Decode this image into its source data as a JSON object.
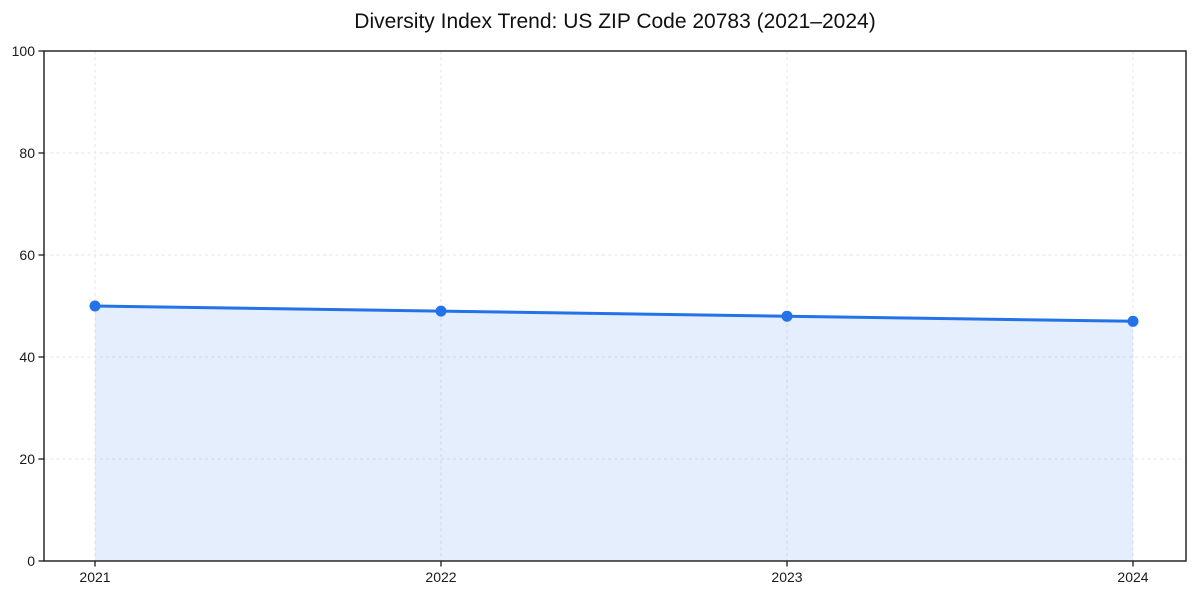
{
  "chart_data": {
    "type": "area",
    "title": "Diversity Index Trend: US ZIP Code 20783 (2021–2024)",
    "categories": [
      "2021",
      "2022",
      "2023",
      "2024"
    ],
    "values": [
      50,
      49,
      48,
      47
    ],
    "xlabel": "",
    "ylabel": "",
    "ylim": [
      0,
      100
    ],
    "yticks": [
      0,
      20,
      40,
      60,
      80,
      100
    ],
    "grid": true,
    "grid_style": "dashed",
    "legend_position": "none",
    "colors": {
      "line": "#2372E8",
      "marker": "#2372E8",
      "fill": "rgba(35, 114, 232, 0.12)",
      "grid": "#e3e3e8",
      "axis": "#1a1a1a",
      "tick_text": "#1a1a1a",
      "background": "#ffffff"
    }
  }
}
